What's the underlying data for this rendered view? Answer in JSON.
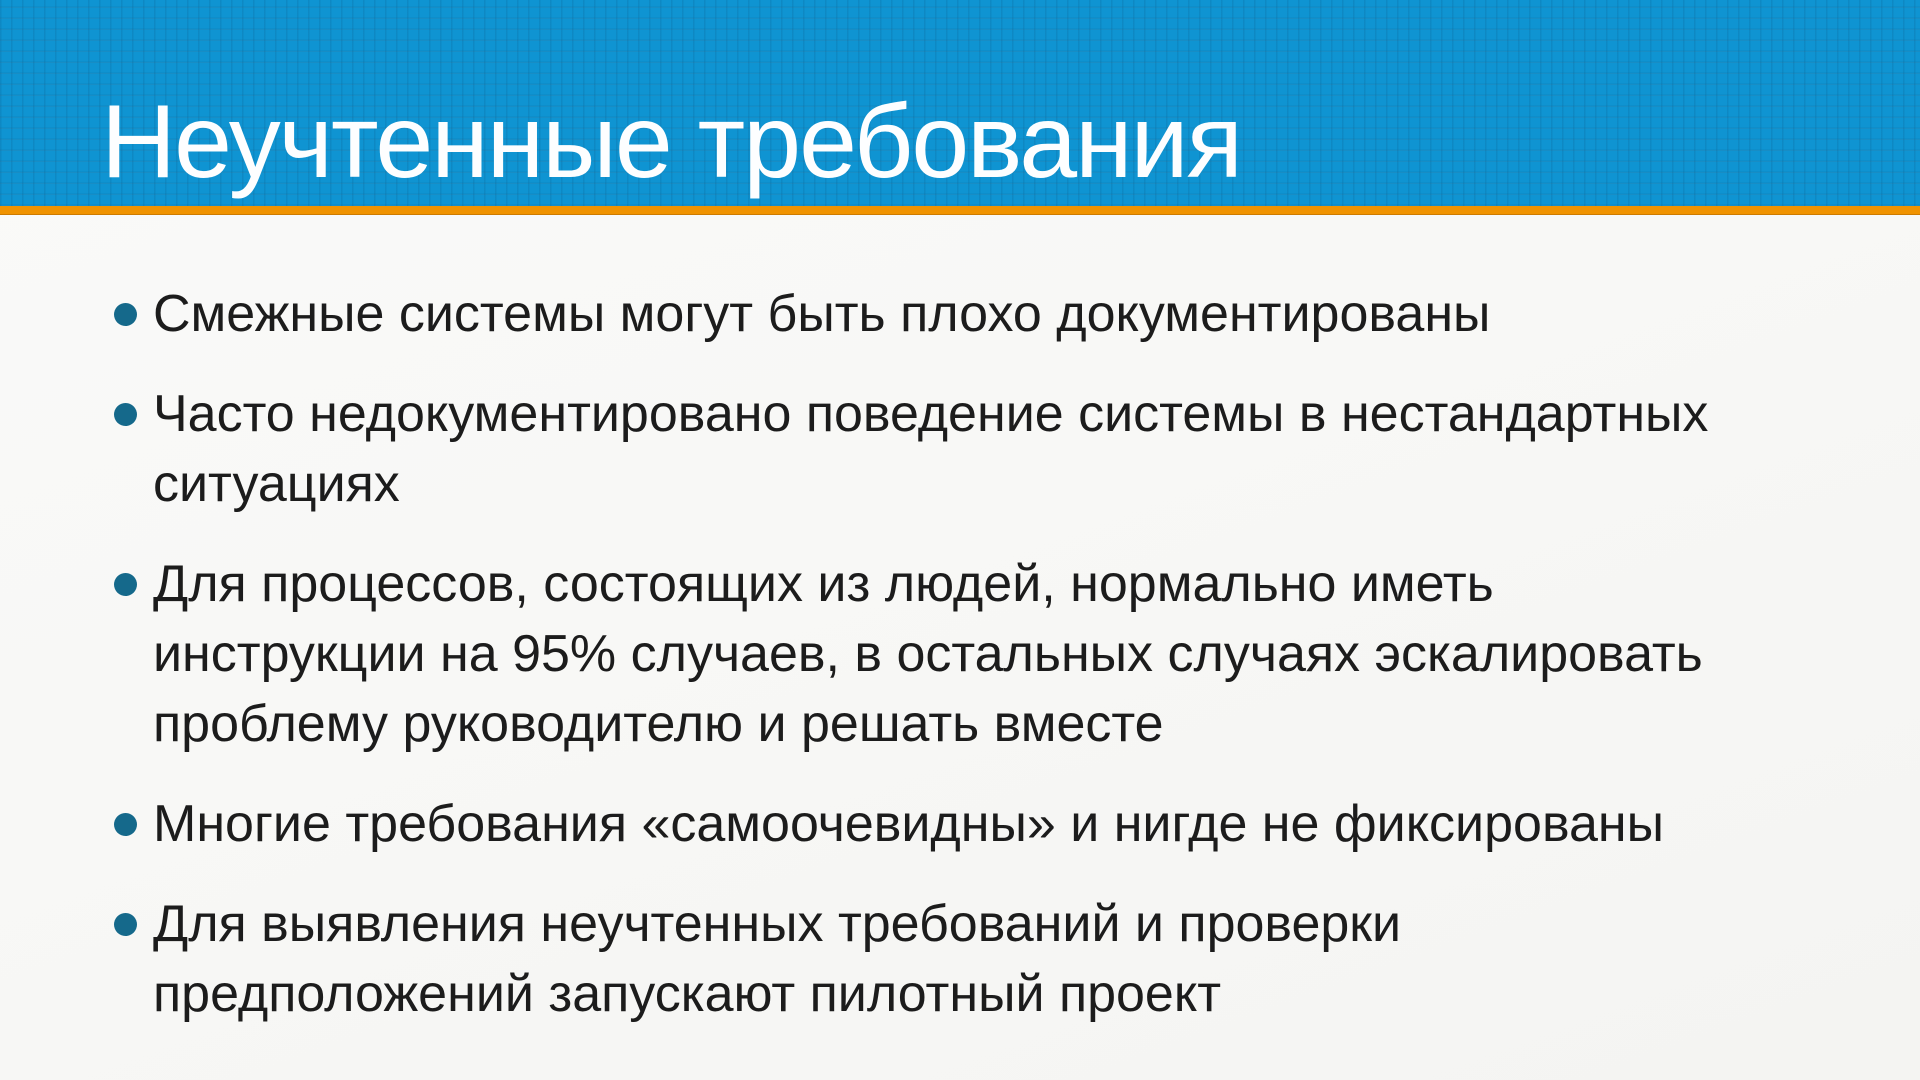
{
  "slide": {
    "title": "Неучтенные требования",
    "bullets": [
      "Смежные системы могут быть плохо документированы",
      "Часто недокументировано поведение системы в нестандартных\nситуациях",
      "Для процессов, состоящих из людей, нормально иметь\nинструкции на 95% случаев, в остальных случаях эскалировать\nпроблему руководителю и решать вместе",
      "Многие требования «самоочевидны» и нигде не фиксированы",
      "Для выявления неучтенных требований и проверки\nпредположений запускают пилотный проект"
    ]
  },
  "colors": {
    "header_blue": "#0f94d2",
    "accent_orange": "#f09300",
    "bullet_teal": "#15698b",
    "title_text": "#fdfeff",
    "text": "#1c1c1c",
    "body_bg_light": "#fafaf9",
    "body_bg_dark": "#f4f4f2"
  }
}
